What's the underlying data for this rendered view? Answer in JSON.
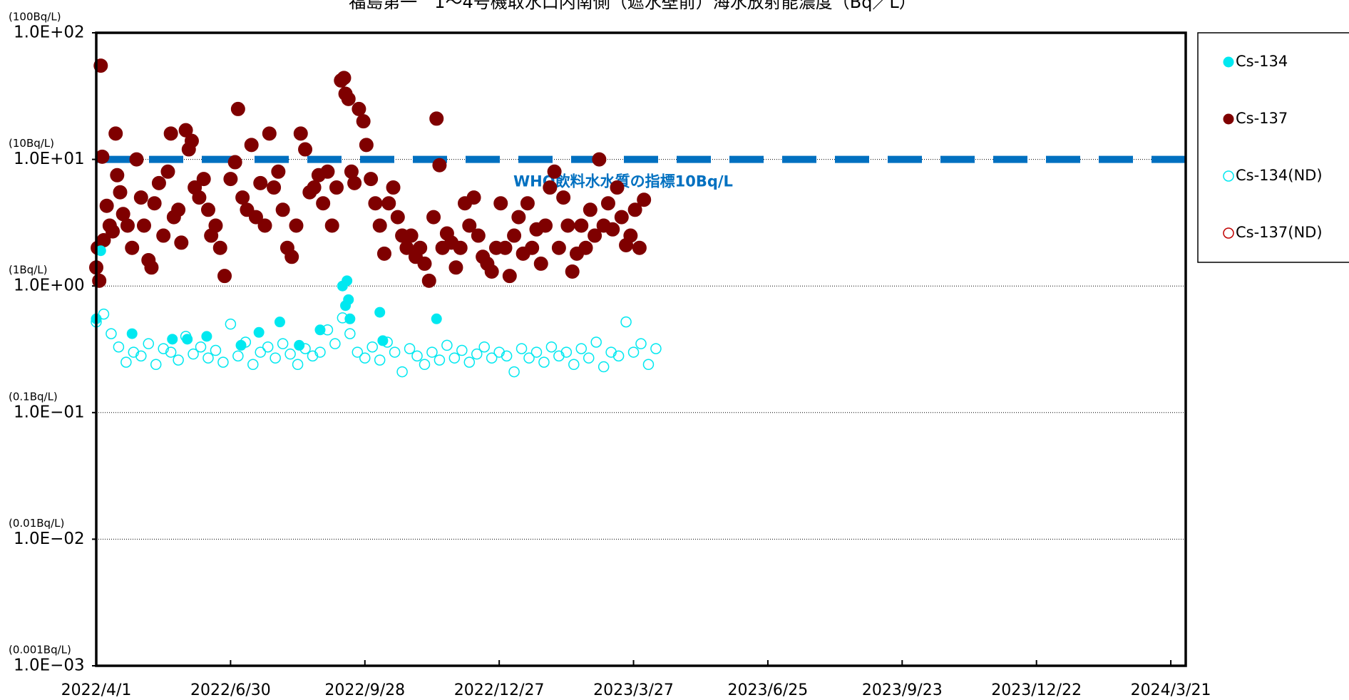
{
  "chart_data": {
    "type": "scatter",
    "title": "福島第一　1～4号機取水口内南側（遮水壁前）海水放射能濃度（Bq／L）",
    "log_y": true,
    "grid": true,
    "xlim": [
      "2022/4/1",
      "2024/3/31"
    ],
    "xticks": [
      "2022/4/1",
      "2022/6/30",
      "2022/9/28",
      "2022/12/27",
      "2023/3/27",
      "2023/6/25",
      "2023/9/23",
      "2023/12/22",
      "2024/3/21"
    ],
    "ylim": [
      0.001,
      100
    ],
    "yticks": [
      {
        "value": 0.001,
        "label": "1.0E−03"
      },
      {
        "value": 0.01,
        "label": "1.0E−02"
      },
      {
        "value": 0.1,
        "label": "1.0E−01"
      },
      {
        "value": 1,
        "label": "1.0E+00"
      },
      {
        "value": 10,
        "label": "1.0E+01"
      },
      {
        "value": 100,
        "label": "1.0E+02"
      }
    ],
    "ytick_notes": [
      "(0.001Bq/L)",
      "(0.01Bq/L)",
      "(0.1Bq/L)",
      "(1Bq/L)",
      "(10Bq/L)",
      "(100Bq/L)"
    ],
    "reference_line": {
      "value": 10,
      "label": "WHO飲料水水質の指標10Bq/L",
      "color": "#0070c0"
    },
    "legend": "right",
    "series": [
      {
        "name": "Cs-134",
        "color": "#00e8f0",
        "marker": "filled",
        "size": 7,
        "x": [
          "2022/4/1",
          "2022/4/4",
          "2022/4/25",
          "2022/5/22",
          "2022/6/1",
          "2022/6/14",
          "2022/7/7",
          "2022/7/19",
          "2022/8/2",
          "2022/8/15",
          "2022/8/29",
          "2022/9/13",
          "2022/9/15",
          "2022/9/16",
          "2022/9/17",
          "2022/9/18",
          "2022/10/8",
          "2022/10/10",
          "2022/11/15"
        ],
        "values": [
          0.55,
          1.9,
          0.42,
          0.38,
          0.38,
          0.4,
          0.34,
          0.43,
          0.52,
          0.34,
          0.45,
          1.0,
          0.7,
          1.1,
          0.78,
          0.55,
          0.62,
          0.37,
          0.55
        ]
      },
      {
        "name": "Cs-137",
        "color": "#7f0000",
        "marker": "filled",
        "size": 9.5,
        "x": [
          "2022/4/1",
          "2022/4/2",
          "2022/4/3",
          "2022/4/4",
          "2022/4/5",
          "2022/4/6",
          "2022/4/8",
          "2022/4/10",
          "2022/4/12",
          "2022/4/14",
          "2022/4/15",
          "2022/4/17",
          "2022/4/19",
          "2022/4/22",
          "2022/4/25",
          "2022/4/28",
          "2022/5/1",
          "2022/5/3",
          "2022/5/6",
          "2022/5/8",
          "2022/5/10",
          "2022/5/13",
          "2022/5/16",
          "2022/5/19",
          "2022/5/21",
          "2022/5/23",
          "2022/5/26",
          "2022/5/28",
          "2022/5/31",
          "2022/6/2",
          "2022/6/4",
          "2022/6/6",
          "2022/6/9",
          "2022/6/12",
          "2022/6/15",
          "2022/6/17",
          "2022/6/20",
          "2022/6/23",
          "2022/6/26",
          "2022/6/30",
          "2022/7/3",
          "2022/7/5",
          "2022/7/8",
          "2022/7/11",
          "2022/7/14",
          "2022/7/17",
          "2022/7/20",
          "2022/7/23",
          "2022/7/26",
          "2022/7/29",
          "2022/8/1",
          "2022/8/4",
          "2022/8/7",
          "2022/8/10",
          "2022/8/13",
          "2022/8/16",
          "2022/8/19",
          "2022/8/22",
          "2022/8/25",
          "2022/8/28",
          "2022/8/31",
          "2022/9/3",
          "2022/9/6",
          "2022/9/9",
          "2022/9/12",
          "2022/9/14",
          "2022/9/15",
          "2022/9/17",
          "2022/9/19",
          "2022/9/21",
          "2022/9/24",
          "2022/9/27",
          "2022/9/29",
          "2022/10/2",
          "2022/10/5",
          "2022/10/8",
          "2022/10/11",
          "2022/10/14",
          "2022/10/17",
          "2022/10/20",
          "2022/10/23",
          "2022/10/26",
          "2022/10/29",
          "2022/11/1",
          "2022/11/4",
          "2022/11/7",
          "2022/11/10",
          "2022/11/13",
          "2022/11/15",
          "2022/11/17",
          "2022/11/19",
          "2022/11/22",
          "2022/11/25",
          "2022/11/28",
          "2022/12/1",
          "2022/12/4",
          "2022/12/7",
          "2022/12/10",
          "2022/12/13",
          "2022/12/16",
          "2022/12/19",
          "2022/12/22",
          "2022/12/25",
          "2022/12/28",
          "2022/12/31",
          "2023/1/3",
          "2023/1/6",
          "2023/1/9",
          "2023/1/12",
          "2023/1/15",
          "2023/1/18",
          "2023/1/21",
          "2023/1/24",
          "2023/1/27",
          "2023/1/30",
          "2023/2/2",
          "2023/2/5",
          "2023/2/8",
          "2023/2/11",
          "2023/2/14",
          "2023/2/17",
          "2023/2/20",
          "2023/2/23",
          "2023/2/26",
          "2023/3/1",
          "2023/3/4",
          "2023/3/7",
          "2023/3/10",
          "2023/3/13",
          "2023/3/16",
          "2023/3/19",
          "2023/3/22",
          "2023/3/25",
          "2023/3/28",
          "2023/3/31",
          "2023/4/3"
        ],
        "values": [
          1.4,
          2.0,
          1.1,
          55,
          10.5,
          2.3,
          4.3,
          3.0,
          2.7,
          16,
          7.5,
          5.5,
          3.7,
          3.0,
          2.0,
          10,
          5.0,
          3.0,
          1.6,
          1.4,
          4.5,
          6.5,
          2.5,
          8.0,
          16,
          3.5,
          4.0,
          2.2,
          17,
          12,
          14,
          6.0,
          5.0,
          7.0,
          4.0,
          2.5,
          3.0,
          2.0,
          1.2,
          7.0,
          9.5,
          25,
          5.0,
          4.0,
          13,
          3.5,
          6.5,
          3.0,
          16,
          6.0,
          8.0,
          4.0,
          2.0,
          1.7,
          3.0,
          16,
          12,
          5.5,
          6.0,
          7.5,
          4.5,
          8.0,
          3.0,
          6.0,
          42,
          44,
          33,
          30,
          8.0,
          6.5,
          25,
          20,
          13,
          7.0,
          4.5,
          3.0,
          1.8,
          4.5,
          6.0,
          3.5,
          2.5,
          2.0,
          2.5,
          1.7,
          2.0,
          1.5,
          1.1,
          3.5,
          21,
          9.0,
          2.0,
          2.6,
          2.2,
          1.4,
          2.0,
          4.5,
          3.0,
          5.0,
          2.5,
          1.7,
          1.5,
          1.3,
          2.0,
          4.5,
          2.0,
          1.2,
          2.5,
          3.5,
          1.8,
          4.5,
          2.0,
          2.8,
          1.5,
          3.0,
          6.0,
          8.0,
          2.0,
          5.0,
          3.0,
          1.3,
          1.8,
          3.0,
          2.0,
          4.0,
          2.5,
          10,
          3.0,
          4.5,
          2.8,
          6.0,
          3.5,
          2.1,
          2.5,
          4.0,
          2.0,
          4.8
        ]
      },
      {
        "name": "Cs-134(ND)",
        "color": "#00e8f0",
        "marker": "open",
        "size": 7,
        "x": [
          "2022/4/1",
          "2022/4/6",
          "2022/4/11",
          "2022/4/16",
          "2022/4/21",
          "2022/4/26",
          "2022/5/1",
          "2022/5/6",
          "2022/5/11",
          "2022/5/16",
          "2022/5/21",
          "2022/5/26",
          "2022/5/31",
          "2022/6/5",
          "2022/6/10",
          "2022/6/15",
          "2022/6/20",
          "2022/6/25",
          "2022/6/30",
          "2022/7/5",
          "2022/7/10",
          "2022/7/15",
          "2022/7/20",
          "2022/7/25",
          "2022/7/30",
          "2022/8/4",
          "2022/8/9",
          "2022/8/14",
          "2022/8/19",
          "2022/8/24",
          "2022/8/29",
          "2022/9/3",
          "2022/9/8",
          "2022/9/13",
          "2022/9/18",
          "2022/9/23",
          "2022/9/28",
          "2022/10/3",
          "2022/10/8",
          "2022/10/13",
          "2022/10/18",
          "2022/10/23",
          "2022/10/28",
          "2022/11/2",
          "2022/11/7",
          "2022/11/12",
          "2022/11/17",
          "2022/11/22",
          "2022/11/27",
          "2022/12/2",
          "2022/12/7",
          "2022/12/12",
          "2022/12/17",
          "2022/12/22",
          "2022/12/27",
          "2023/1/1",
          "2023/1/6",
          "2023/1/11",
          "2023/1/16",
          "2023/1/21",
          "2023/1/26",
          "2023/1/31",
          "2023/2/5",
          "2023/2/10",
          "2023/2/15",
          "2023/2/20",
          "2023/2/25",
          "2023/3/2",
          "2023/3/7",
          "2023/3/12",
          "2023/3/17",
          "2023/3/22",
          "2023/3/27",
          "2023/4/1",
          "2023/4/6",
          "2023/4/11"
        ],
        "values": [
          0.52,
          0.6,
          0.42,
          0.33,
          0.25,
          0.3,
          0.28,
          0.35,
          0.24,
          0.32,
          0.3,
          0.26,
          0.4,
          0.29,
          0.33,
          0.27,
          0.31,
          0.25,
          0.5,
          0.28,
          0.36,
          0.24,
          0.3,
          0.33,
          0.27,
          0.35,
          0.29,
          0.24,
          0.32,
          0.28,
          0.3,
          0.45,
          0.35,
          0.56,
          0.42,
          0.3,
          0.27,
          0.33,
          0.26,
          0.36,
          0.3,
          0.21,
          0.32,
          0.28,
          0.24,
          0.3,
          0.26,
          0.34,
          0.27,
          0.31,
          0.25,
          0.29,
          0.33,
          0.27,
          0.3,
          0.28,
          0.21,
          0.32,
          0.27,
          0.3,
          0.25,
          0.33,
          0.28,
          0.3,
          0.24,
          0.32,
          0.27,
          0.36,
          0.23,
          0.3,
          0.28,
          0.52,
          0.3,
          0.35,
          0.24,
          0.32
        ]
      },
      {
        "name": "Cs-137(ND)",
        "color": "#c00000",
        "marker": "open",
        "size": 7,
        "x": [],
        "values": []
      }
    ]
  }
}
